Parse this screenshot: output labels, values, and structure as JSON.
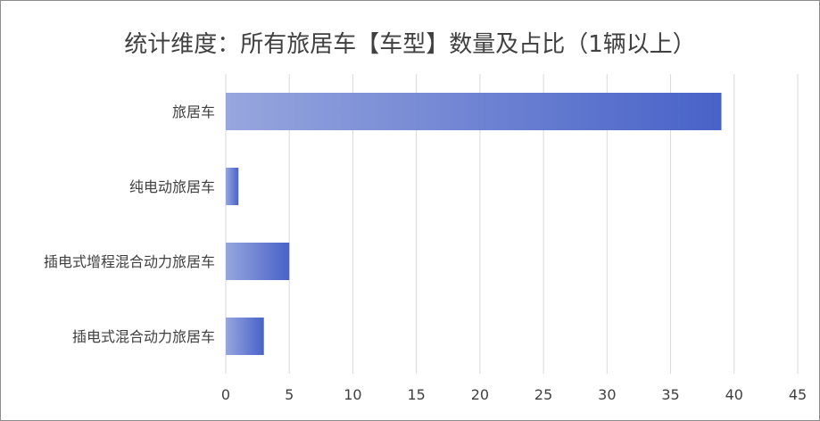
{
  "chart_data": {
    "type": "bar",
    "orientation": "horizontal",
    "title": "统计维度：所有旅居车【车型】数量及占比（1辆以上）",
    "categories": [
      "旅居车",
      "纯电动旅居车",
      "插电式增程混合动力旅居车",
      "插电式混合动力旅居车"
    ],
    "values": [
      39,
      1,
      5,
      3
    ],
    "xlim": [
      0,
      45
    ],
    "xticks": [
      0,
      5,
      10,
      15,
      20,
      25,
      30,
      35,
      40,
      45
    ],
    "grid": true,
    "legend": "none",
    "colors": {
      "bar_start": "#97a6de",
      "bar_end": "#4862c8",
      "grid": "#d9d9d9",
      "text": "#404040",
      "border": "#8c8c8c"
    }
  }
}
